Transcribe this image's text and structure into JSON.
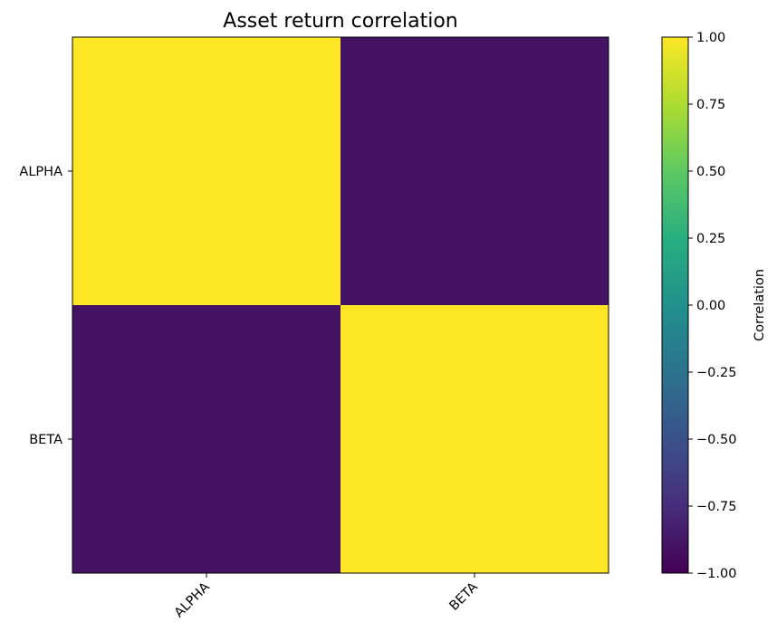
{
  "chart_data": {
    "type": "heatmap",
    "title": "Asset return correlation",
    "xlabel": "",
    "ylabel": "",
    "x_categories": [
      "ALPHA",
      "BETA"
    ],
    "y_categories": [
      "ALPHA",
      "BETA"
    ],
    "values": [
      [
        1.0,
        -0.9
      ],
      [
        -0.9,
        1.0
      ]
    ],
    "colormap": "viridis",
    "colorbar": {
      "label": "Correlation",
      "range": [
        -1.0,
        1.0
      ],
      "ticks": [
        1.0,
        0.75,
        0.5,
        0.25,
        0.0,
        -0.25,
        -0.5,
        -0.75,
        -1.0
      ],
      "tick_labels": [
        "1.00",
        "0.75",
        "0.50",
        "0.25",
        "0.00",
        "−0.25",
        "−0.50",
        "−0.75",
        "−1.00"
      ]
    },
    "grid": false
  }
}
